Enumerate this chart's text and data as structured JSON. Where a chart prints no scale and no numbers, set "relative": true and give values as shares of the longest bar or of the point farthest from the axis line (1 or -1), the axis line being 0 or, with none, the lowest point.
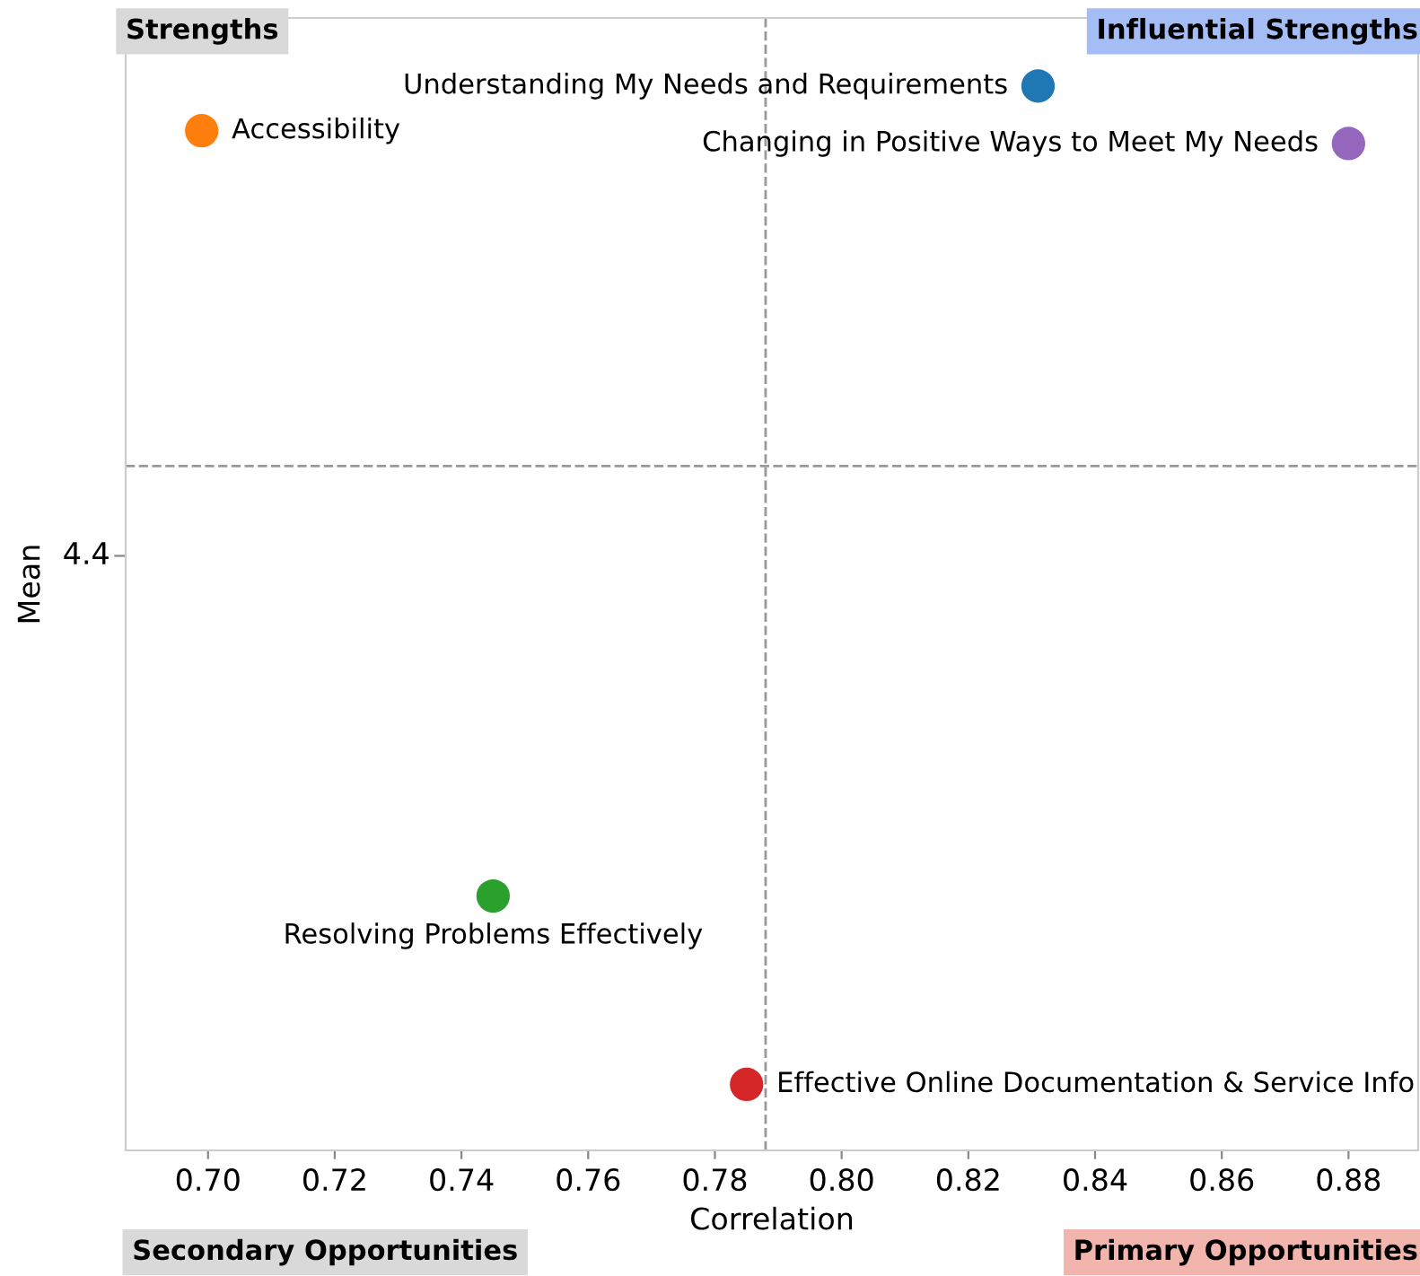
{
  "chart_data": {
    "type": "scatter",
    "xlabel": "Correlation",
    "ylabel": "Mean",
    "relative": true,
    "x": [
      0.699,
      0.831,
      0.88,
      0.745,
      0.785
    ],
    "values": [
      0.958,
      1,
      0.946,
      0.239,
      0.062
    ],
    "colors": [
      "#ff7f0e",
      "#1f77b4",
      "#9467bd",
      "#2ca02c",
      "#d62728"
    ],
    "xlim": [
      0.687,
      0.891
    ],
    "xticks": [
      {
        "value": 0.7,
        "label": "0.70"
      },
      0.72,
      0.74,
      0.76,
      0.78,
      {
        "value": 0.8,
        "label": "0.80"
      },
      0.82,
      0.84,
      0.86,
      0.88
    ],
    "marker": "circle",
    "grid": false,
    "ref_lines": [
      {
        "axis": "x",
        "value": 0.788,
        "color": "#999999",
        "line_style": "dashed"
      },
      {
        "axis": "y",
        "value": 0.643,
        "color": "#999999",
        "line_style": "dashed"
      }
    ],
    "annotations": [
      {
        "text": "Accessibility",
        "x": 0.699,
        "y": 0.958
      },
      {
        "text": "Understanding My Needs and Requirements",
        "x": 0.831,
        "y": 1
      },
      {
        "text": "Changing in Positive Ways to Meet My Needs",
        "x": 0.88,
        "y": 0.946
      },
      {
        "text": "Resolving Problems Effectively",
        "x": 0.745,
        "y": 0.239
      },
      {
        "text": "Effective Online Documentation & Service Info",
        "x": 0.785,
        "y": 0.062
      },
      "4.4",
      "Strengths",
      "Influential Strengths",
      "Secondary Opportunities",
      "Primary Opportunities"
    ]
  }
}
